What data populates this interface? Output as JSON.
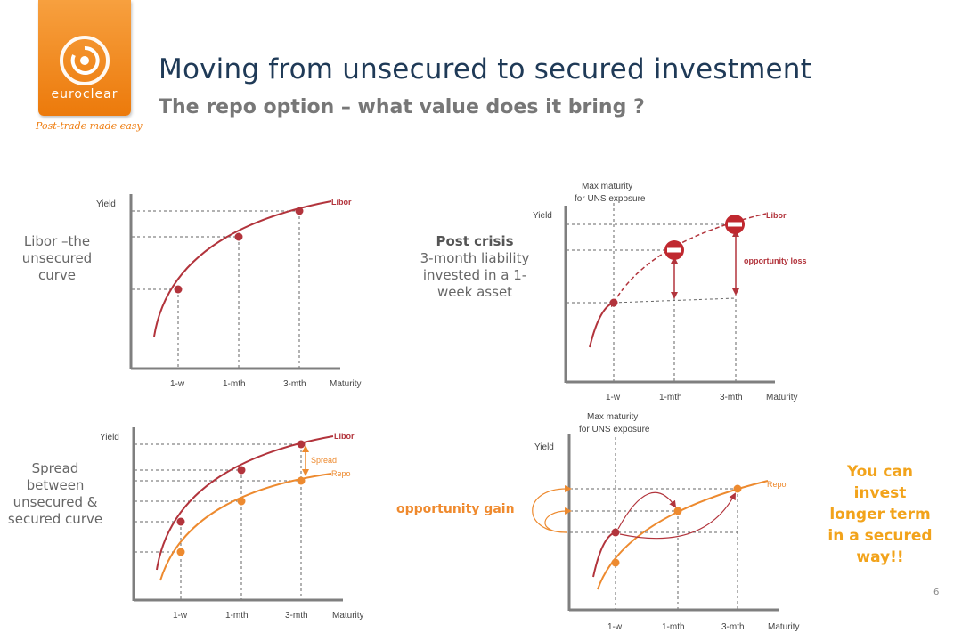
{
  "logo": {
    "wordmark": "euroclear",
    "tagline": "Post-trade made easy"
  },
  "title": "Moving from unsecured to secured investment",
  "subtitle": "The repo option – what value does it bring ?",
  "panels": {
    "libor": {
      "side_label": "Libor –the unsecured curve"
    },
    "spread": {
      "side_label": "Spread between unsecured & secured curve"
    },
    "post_crisis": {
      "heading": "Post crisis",
      "body": "3-month liability invested in a 1-week asset"
    },
    "gain": {
      "callout": "opportunity gain",
      "message": "You can invest longer term in a secured way!!"
    }
  },
  "chart_labels": {
    "yaxis": "Yield",
    "xaxis": "Maturity",
    "ticks": [
      "1-w",
      "1-mth",
      "3-mth"
    ],
    "libor": "Libor",
    "repo": "Repo",
    "spread": "Spread",
    "opportunity_loss": "opportunity loss",
    "max_maturity_line1": "Max maturity",
    "max_maturity_line2": "for UNS exposure"
  },
  "colors": {
    "libor": "#b2343c",
    "repo": "#ed8a2f",
    "title": "#1f3a57",
    "accent": "#f2a31b",
    "brand": "#ec7a0b"
  },
  "page_number": "6"
}
